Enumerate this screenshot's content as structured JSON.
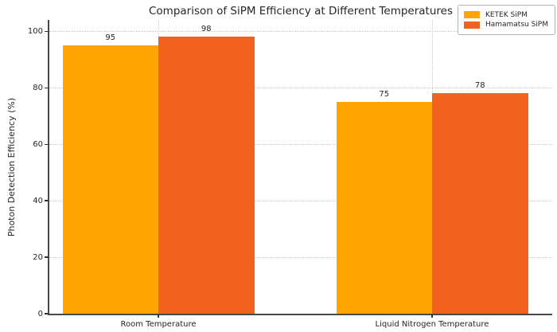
{
  "chart_data": {
    "type": "bar",
    "title": "Comparison of SiPM Efficiency at Different Temperatures",
    "ylabel": "Photon Detection Efficiency (%)",
    "xlabel": "",
    "categories": [
      "Room Temperature",
      "Liquid Nitrogen Temperature"
    ],
    "series": [
      {
        "name": "KETEK SiPM",
        "color": "#FFA500",
        "values": [
          95,
          75
        ]
      },
      {
        "name": "Hamamatsu SiPM",
        "color": "#F2611D",
        "values": [
          98,
          78
        ]
      }
    ],
    "yticks": [
      0,
      20,
      40,
      60,
      80,
      100
    ],
    "ylim": [
      0,
      104
    ],
    "bar_value_labels": true,
    "grid": {
      "axes": "both",
      "style": "dotted",
      "color": "#c9c9c9"
    },
    "legend": {
      "position": "upper right"
    },
    "style": {
      "spine_color": "#4a4a4a",
      "text_color": "#262626",
      "background": "#ffffff"
    }
  }
}
